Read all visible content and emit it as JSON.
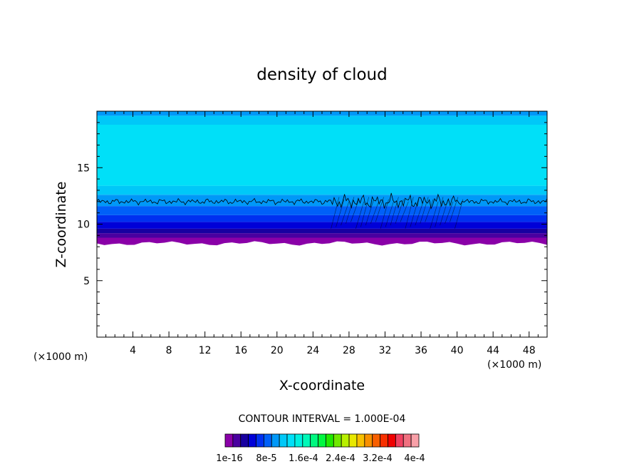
{
  "chart_data": {
    "type": "heatmap",
    "title": "density of cloud",
    "xlabel": "X-coordinate",
    "ylabel": "Z-coordinate",
    "x_unit": "(×1000 m)",
    "y_unit": "(×1000 m)",
    "xlim": [
      0,
      50
    ],
    "ylim": [
      0,
      20
    ],
    "x_ticks": [
      4,
      8,
      12,
      16,
      20,
      24,
      28,
      32,
      36,
      40,
      44,
      48
    ],
    "y_ticks": [
      5,
      10,
      15
    ],
    "contour_interval_text": "CONTOUR INTERVAL = 1.000E-04",
    "cloud_base": 8.5,
    "cloud_top": 19.6,
    "contour_level_z": 12.0,
    "colorbar": {
      "labels": [
        "1e-16",
        "8e-5",
        "1.6e-4",
        "2.4e-4",
        "3.2e-4",
        "4e-4"
      ],
      "colors": [
        "#8a00a8",
        "#4a00a0",
        "#1800a0",
        "#0000d8",
        "#0030f0",
        "#0060f8",
        "#0098f8",
        "#00c8f8",
        "#00e0f8",
        "#00f0e0",
        "#00f8b8",
        "#00f880",
        "#00f840",
        "#20e800",
        "#70e800",
        "#b8f000",
        "#e8e800",
        "#f8c000",
        "#f89000",
        "#f86000",
        "#f83000",
        "#f00000",
        "#f04060",
        "#f07080",
        "#f8a0a8"
      ]
    },
    "bands": [
      {
        "z0": 8.3,
        "z1": 8.8,
        "color": "#8a00a8"
      },
      {
        "z0": 8.8,
        "z1": 9.2,
        "color": "#4a00a0"
      },
      {
        "z0": 9.2,
        "z1": 9.6,
        "color": "#1800a0"
      },
      {
        "z0": 9.6,
        "z1": 10.2,
        "color": "#0000d8"
      },
      {
        "z0": 10.2,
        "z1": 10.8,
        "color": "#0030f0"
      },
      {
        "z0": 10.8,
        "z1": 11.6,
        "color": "#0060f8"
      },
      {
        "z0": 11.6,
        "z1": 12.6,
        "color": "#0098f8"
      },
      {
        "z0": 12.6,
        "z1": 13.4,
        "color": "#00c8f8"
      },
      {
        "z0": 13.4,
        "z1": 18.8,
        "color": "#00e0f8"
      },
      {
        "z0": 18.8,
        "z1": 19.6,
        "color": "#00c8f8"
      },
      {
        "z0": 19.6,
        "z1": 20.0,
        "color": "#0098f8"
      }
    ]
  }
}
